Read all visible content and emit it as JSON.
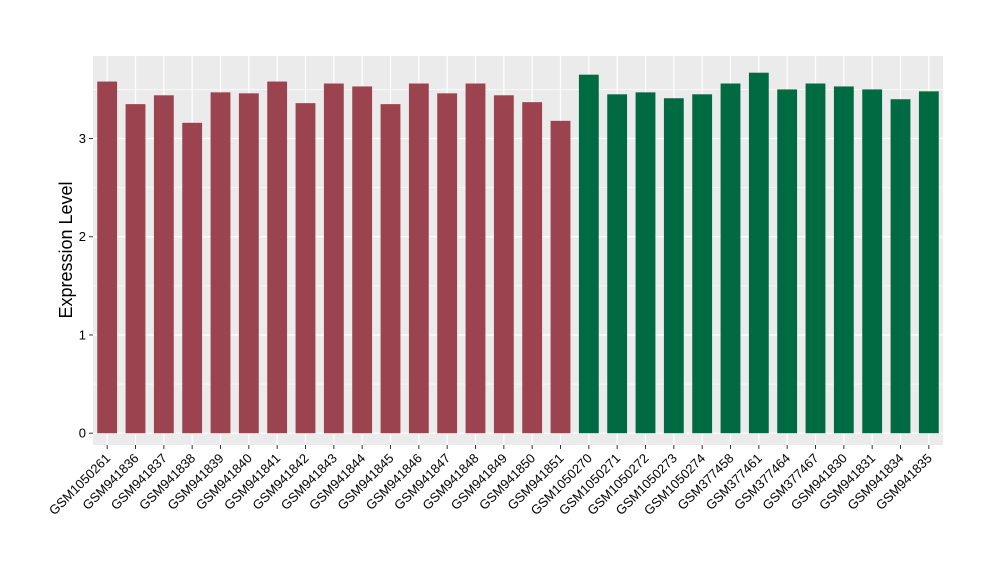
{
  "chart_data": {
    "type": "bar",
    "title": "",
    "xlabel": "",
    "ylabel": "Expression Level",
    "ylim": [
      -0.12,
      3.84
    ],
    "yticks": [
      0,
      1,
      2,
      3
    ],
    "grid": true,
    "legend": "none",
    "categories": [
      "GSM1050261",
      "GSM941836",
      "GSM941837",
      "GSM941838",
      "GSM941839",
      "GSM941840",
      "GSM941841",
      "GSM941842",
      "GSM941843",
      "GSM941844",
      "GSM941845",
      "GSM941846",
      "GSM941847",
      "GSM941848",
      "GSM941849",
      "GSM941850",
      "GSM941851",
      "GSM1050270",
      "GSM1050271",
      "GSM1050272",
      "GSM1050273",
      "GSM1050274",
      "GSM377458",
      "GSM377461",
      "GSM377464",
      "GSM377467",
      "GSM941830",
      "GSM941831",
      "GSM941834",
      "GSM941835"
    ],
    "values": [
      3.58,
      3.35,
      3.44,
      3.16,
      3.47,
      3.46,
      3.58,
      3.36,
      3.56,
      3.53,
      3.35,
      3.56,
      3.46,
      3.56,
      3.44,
      3.37,
      3.18,
      3.65,
      3.45,
      3.47,
      3.41,
      3.45,
      3.56,
      3.67,
      3.5,
      3.56,
      3.53,
      3.5,
      3.4,
      3.48
    ],
    "bar_colors": [
      "#9c4350",
      "#9c4350",
      "#9c4350",
      "#9c4350",
      "#9c4350",
      "#9c4350",
      "#9c4350",
      "#9c4350",
      "#9c4350",
      "#9c4350",
      "#9c4350",
      "#9c4350",
      "#9c4350",
      "#9c4350",
      "#9c4350",
      "#9c4350",
      "#9c4350",
      "#006b43",
      "#006b43",
      "#006b43",
      "#006b43",
      "#006b43",
      "#006b43",
      "#006b43",
      "#006b43",
      "#006b43",
      "#006b43",
      "#006b43",
      "#006b43",
      "#006b43"
    ]
  },
  "colors": {
    "panel_background": "#ebebeb",
    "grid_major": "#ffffff",
    "axis_tick": "#333333",
    "group_1": "#9c4350",
    "group_2": "#006b43"
  }
}
